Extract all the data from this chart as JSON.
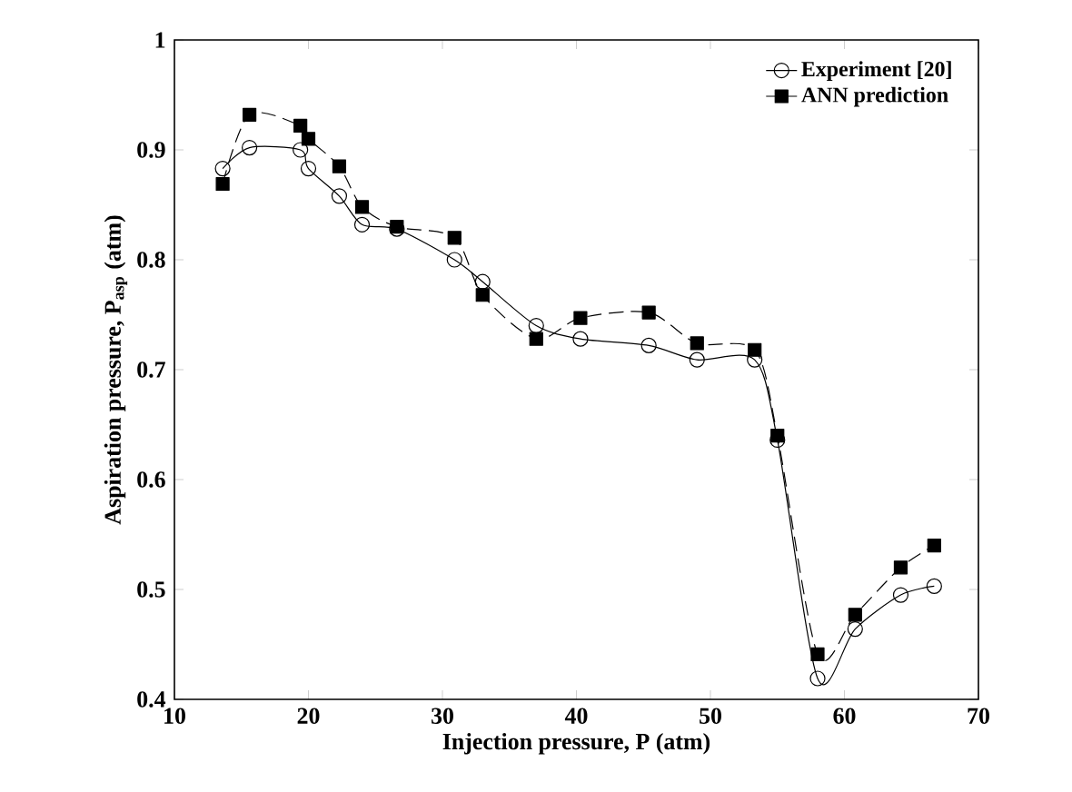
{
  "chart_data": {
    "type": "line",
    "xlabel": "Injection pressure, P (atm)",
    "ylabel": "Aspiration pressure, P$_{asp}$ (atm)",
    "xlim": [
      10,
      70
    ],
    "ylim": [
      0.4,
      1
    ],
    "xticks": [
      10,
      20,
      30,
      40,
      50,
      60,
      70
    ],
    "yticks": [
      0.4,
      0.5,
      0.6,
      0.7,
      0.8,
      0.9,
      1
    ],
    "legend": "top right",
    "grid": false,
    "series": [
      {
        "name": "Experiment [20]",
        "color": "#000000",
        "marker": "circle",
        "line_style": "solid",
        "x": [
          13.6,
          15.6,
          19.4,
          20,
          22.3,
          24,
          26.6,
          30.9,
          33,
          37,
          40.3,
          45.4,
          49,
          53.3,
          55,
          58,
          60.8,
          64.2,
          66.7
        ],
        "values": [
          0.883,
          0.902,
          0.9,
          0.883,
          0.858,
          0.832,
          0.828,
          0.8,
          0.78,
          0.74,
          0.728,
          0.722,
          0.709,
          0.709,
          0.636,
          0.419,
          0.464,
          0.495,
          0.503
        ]
      },
      {
        "name": "ANN prediction",
        "color": "#000000",
        "marker": "square",
        "line_style": "dashed",
        "x": [
          13.6,
          15.6,
          19.4,
          20,
          22.3,
          24,
          26.6,
          30.9,
          33,
          37,
          40.3,
          45.4,
          49,
          53.3,
          55,
          58,
          60.8,
          64.2,
          66.7
        ],
        "values": [
          0.869,
          0.932,
          0.922,
          0.91,
          0.885,
          0.848,
          0.83,
          0.82,
          0.768,
          0.728,
          0.747,
          0.752,
          0.724,
          0.718,
          0.64,
          0.441,
          0.477,
          0.52,
          0.54
        ]
      }
    ]
  }
}
